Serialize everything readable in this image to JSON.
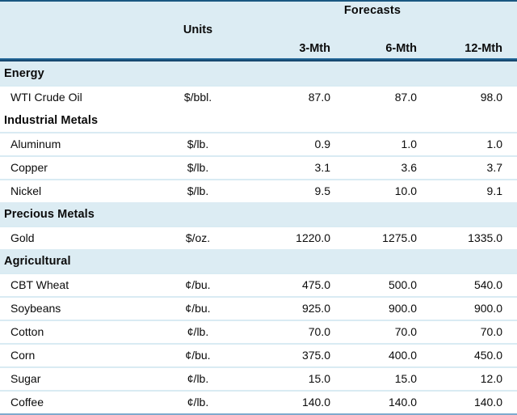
{
  "chart_data": {
    "type": "table",
    "title": "",
    "header": {
      "group_label": "Forecasts",
      "units_label": "Units",
      "forecast_columns": [
        "3-Mth",
        "6-Mth",
        "12-Mth"
      ]
    },
    "sections": [
      {
        "label": "Energy",
        "rows": [
          {
            "name": "WTI Crude Oil",
            "unit": "$/bbl.",
            "f3": "87.0",
            "f6": "87.0",
            "f12": "98.0"
          }
        ]
      },
      {
        "label": "Industrial Metals",
        "rows": [
          {
            "name": "Aluminum",
            "unit": "$/lb.",
            "f3": "0.9",
            "f6": "1.0",
            "f12": "1.0"
          },
          {
            "name": "Copper",
            "unit": "$/lb.",
            "f3": "3.1",
            "f6": "3.6",
            "f12": "3.7"
          },
          {
            "name": "Nickel",
            "unit": "$/lb.",
            "f3": "9.5",
            "f6": "10.0",
            "f12": "9.1"
          }
        ]
      },
      {
        "label": "Precious Metals",
        "rows": [
          {
            "name": "Gold",
            "unit": "$/oz.",
            "f3": "1220.0",
            "f6": "1275.0",
            "f12": "1335.0"
          }
        ]
      },
      {
        "label": "Agricultural",
        "rows": [
          {
            "name": "CBT Wheat",
            "unit": "¢/bu.",
            "f3": "475.0",
            "f6": "500.0",
            "f12": "540.0"
          },
          {
            "name": "Soybeans",
            "unit": "¢/bu.",
            "f3": "925.0",
            "f6": "900.0",
            "f12": "900.0"
          },
          {
            "name": "Cotton",
            "unit": "¢/lb.",
            "f3": "70.0",
            "f6": "70.0",
            "f12": "70.0"
          },
          {
            "name": "Corn",
            "unit": "¢/bu.",
            "f3": "375.0",
            "f6": "400.0",
            "f12": "450.0"
          },
          {
            "name": "Sugar",
            "unit": "¢/lb.",
            "f3": "15.0",
            "f6": "15.0",
            "f12": "12.0"
          },
          {
            "name": "Coffee",
            "unit": "¢/lb.",
            "f3": "140.0",
            "f6": "140.0",
            "f12": "140.0"
          }
        ]
      }
    ],
    "layout": {
      "grid": "off",
      "section_band_shaded": [
        "Energy",
        "Precious Metals",
        "Agricultural"
      ],
      "section_band_white": [
        "Industrial Metals"
      ]
    }
  },
  "colors": {
    "header_band": "#dcecf3",
    "section_band": "#dcecf3",
    "thick_rule": "#1a5681",
    "top_border": "#1a5781",
    "bottom_border": "#7ea9cd",
    "row_separator": "#d9ebf3",
    "text": "#0b0b0b"
  }
}
